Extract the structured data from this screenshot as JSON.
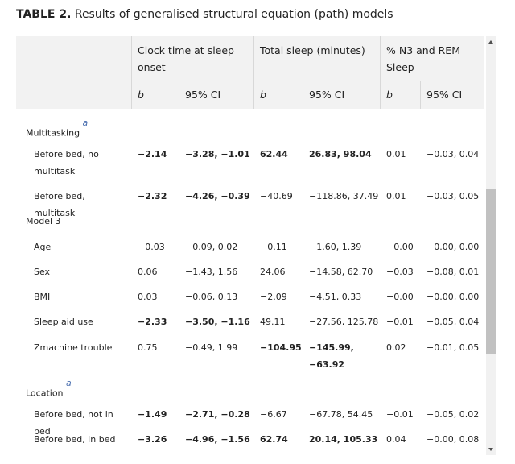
{
  "title": {
    "label": "TABLE 2.",
    "text": "Results of generalised structural equation (path) models"
  },
  "header": {
    "groups": [
      "Clock time at sleep onset",
      "Total sleep (minutes)",
      "% N3 and REM Sleep"
    ],
    "sub": [
      "b",
      "95% CI",
      "b",
      "95% CI",
      "b",
      "95% CI"
    ]
  },
  "rows": [
    {
      "label": "Multitasking",
      "note": "a"
    },
    {
      "label": "Before bed, no multitask",
      "cells": [
        "−2.14",
        "−3.28, −1.01",
        "62.44",
        "26.83, 98.04",
        "0.01",
        "−0.03, 0.04"
      ],
      "bold": [
        true,
        true,
        true,
        true,
        false,
        false
      ]
    },
    {
      "label": "Before bed, multitask",
      "cells": [
        "−2.32",
        "−4.26, −0.39",
        "−40.69",
        "−118.86, 37.49",
        "0.01",
        "−0.03, 0.05"
      ],
      "bold": [
        true,
        true,
        false,
        false,
        false,
        false
      ]
    },
    {
      "label": "Model 3"
    },
    {
      "label": "Age",
      "cells": [
        "−0.03",
        "−0.09, 0.02",
        "−0.11",
        "−1.60, 1.39",
        "−0.00",
        "−0.00, 0.00"
      ],
      "bold": [
        false,
        false,
        false,
        false,
        false,
        false
      ]
    },
    {
      "label": "Sex",
      "cells": [
        "0.06",
        "−1.43, 1.56",
        "24.06",
        "−14.58, 62.70",
        "−0.03",
        "−0.08, 0.01"
      ],
      "bold": [
        false,
        false,
        false,
        false,
        false,
        false
      ]
    },
    {
      "label": "BMI",
      "cells": [
        "0.03",
        "−0.06, 0.13",
        "−2.09",
        "−4.51, 0.33",
        "−0.00",
        "−0.00, 0.00"
      ],
      "bold": [
        false,
        false,
        false,
        false,
        false,
        false
      ]
    },
    {
      "label": "Sleep aid use",
      "cells": [
        "−2.33",
        "−3.50, −1.16",
        "49.11",
        "−27.56, 125.78",
        "−0.01",
        "−0.05, 0.04"
      ],
      "bold": [
        true,
        true,
        false,
        false,
        false,
        false
      ]
    },
    {
      "label": "Zmachine trouble",
      "cells": [
        "0.75",
        "−0.49, 1.99",
        "−104.95",
        "−145.99, −63.92",
        "0.02",
        "−0.01, 0.05"
      ],
      "bold": [
        false,
        false,
        true,
        true,
        false,
        false
      ]
    },
    {
      "label": "Location",
      "note": "a"
    },
    {
      "label": "Before bed, not in bed",
      "cells": [
        "−1.49",
        "−2.71, −0.28",
        "−6.67",
        "−67.78, 54.45",
        "−0.01",
        "−0.05, 0.02"
      ],
      "bold": [
        true,
        true,
        false,
        false,
        false,
        false
      ]
    },
    {
      "label": "Before bed, in bed",
      "cells": [
        "−3.26",
        "−4.96, −1.56",
        "62.74",
        "20.14, 105.33",
        "0.04",
        "−0.00, 0.08"
      ],
      "bold": [
        true,
        true,
        true,
        true,
        false,
        false
      ]
    }
  ]
}
